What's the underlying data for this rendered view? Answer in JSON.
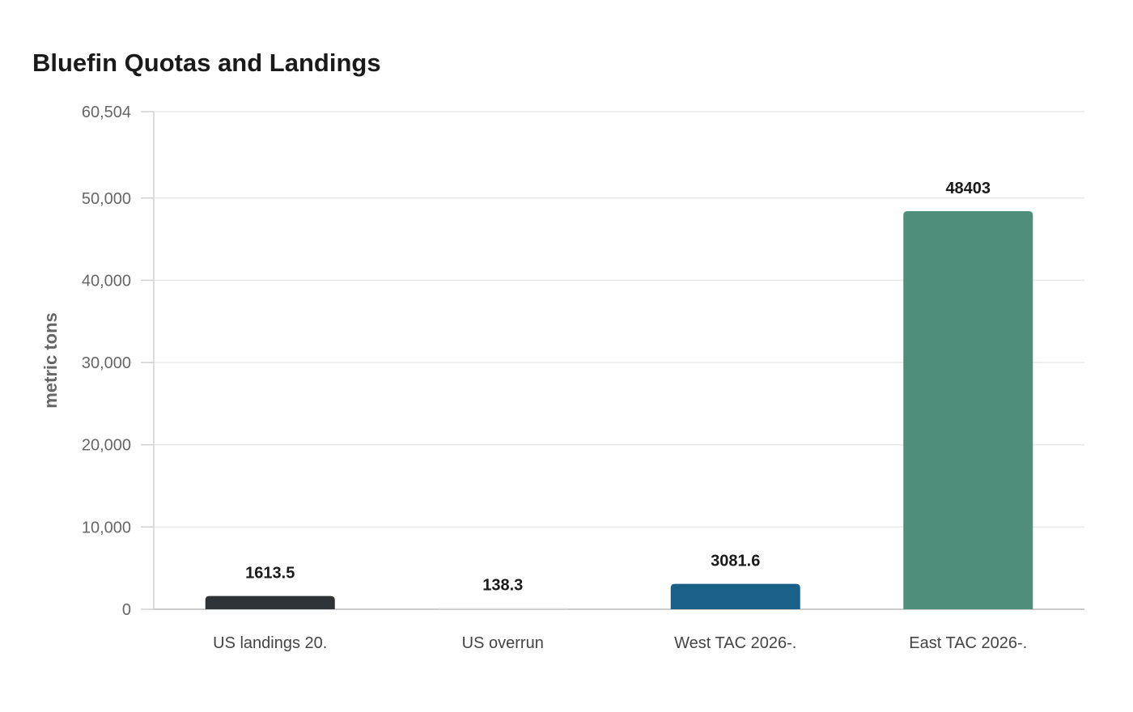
{
  "chart_data": {
    "type": "bar",
    "title": "Bluefin Quotas and Landings",
    "xlabel": "",
    "ylabel": "metric tons",
    "categories": [
      "US landings 20.",
      "US overrun",
      "West TAC 2026-.",
      "East TAC 2026-."
    ],
    "values": [
      1613.5,
      138.3,
      3081.6,
      48403
    ],
    "value_labels": [
      "1613.5",
      "138.3",
      "3081.6",
      "48403"
    ],
    "colors": [
      "#2d3336",
      "#dcdcdc",
      "#1a6189",
      "#4e8e7b"
    ],
    "ylim": [
      0,
      60504
    ],
    "yticks": [
      0,
      10000,
      20000,
      30000,
      40000,
      50000,
      60504
    ],
    "ytick_labels": [
      "0",
      "10,000",
      "20,000",
      "30,000",
      "40,000",
      "50,000",
      "60,504"
    ],
    "grid": true,
    "legend": "none"
  }
}
